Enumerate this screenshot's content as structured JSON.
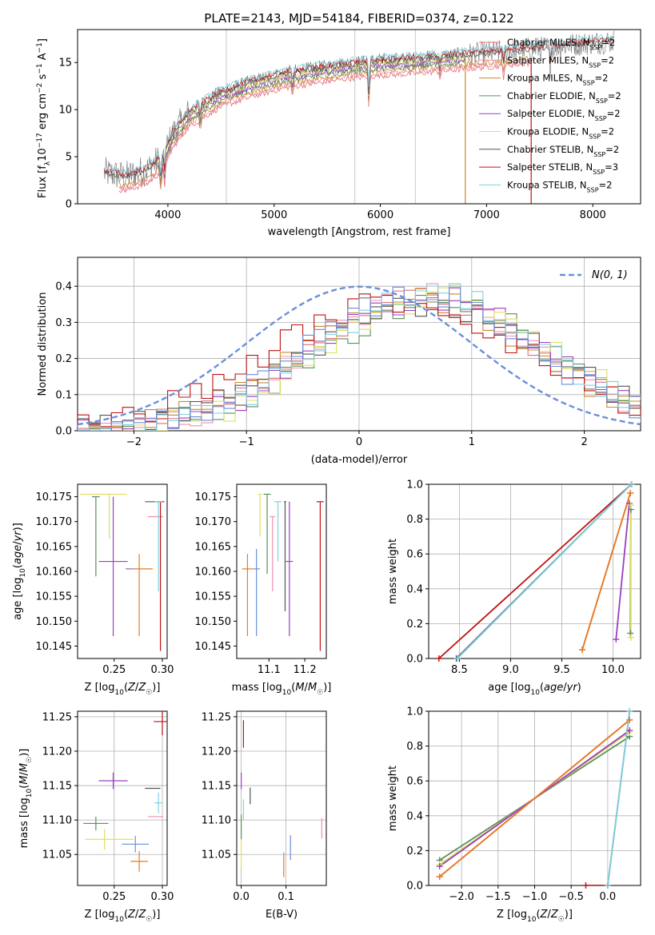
{
  "title": "PLATE=2143, MJD=54184, FIBERID=0374, z=0.122",
  "colors": {
    "chabrier_miles": "#e07070",
    "salpeter_miles": "#f090b0",
    "kroupa_miles": "#c88a2c",
    "chabrier_elodie": "#5a8f5a",
    "salpeter_elodie": "#9b3fc0",
    "kroupa_elodie": "#dde05a",
    "chabrier_stelib": "#555555",
    "salpeter_stelib": "#c01010",
    "kroupa_stelib": "#80d0e0",
    "data": "#808080",
    "normal": "#6a8fd8",
    "blue": "#6a8fd8",
    "orange": "#e87a20"
  },
  "chart_data": [
    {
      "id": "spectrum",
      "type": "line",
      "title": "PLATE=2143, MJD=54184, FIBERID=0374, z=0.122",
      "xlabel": "wavelength [Angstrom, rest frame]",
      "ylabel": "Flux [f_λ 10^-17 erg cm^-2 s^-1 A^-1]",
      "xlim": [
        3150,
        8450
      ],
      "ylim": [
        0,
        18.5
      ],
      "xticks": [
        4000,
        5000,
        6000,
        7000,
        8000
      ],
      "yticks": [
        0,
        5,
        10,
        15
      ],
      "vlines": [
        4550,
        5760,
        6330
      ],
      "drop_lines": [
        {
          "x": 6800,
          "color_key": "kroupa_miles"
        },
        {
          "x": 7420,
          "color_key": "salpeter_stelib"
        }
      ],
      "legend_location": "upper right",
      "legend": [
        {
          "label": "Chabrier MILES, N",
          "sub": "SSP",
          "suffix": "=2",
          "color_key": "chabrier_miles"
        },
        {
          "label": "Salpeter MILES, N",
          "sub": "SSP",
          "suffix": "=2",
          "color_key": "salpeter_miles"
        },
        {
          "label": "Kroupa MILES, N",
          "sub": "SSP",
          "suffix": "=2",
          "color_key": "kroupa_miles"
        },
        {
          "label": "Chabrier ELODIE, N",
          "sub": "SSP",
          "suffix": "=2",
          "color_key": "chabrier_elodie"
        },
        {
          "label": "Salpeter ELODIE, N",
          "sub": "SSP",
          "suffix": "=2",
          "color_key": "salpeter_elodie"
        },
        {
          "label": "Kroupa ELODIE, N",
          "sub": "SSP",
          "suffix": "=2",
          "color_key": "kroupa_elodie"
        },
        {
          "label": "Chabrier STELIB, N",
          "sub": "SSP",
          "suffix": "=2",
          "color_key": "chabrier_stelib"
        },
        {
          "label": "Salpeter STELIB, N",
          "sub": "SSP",
          "suffix": "=3",
          "color_key": "salpeter_stelib"
        },
        {
          "label": "Kroupa STELIB, N",
          "sub": "SSP",
          "suffix": "=2",
          "color_key": "kroupa_stelib"
        }
      ],
      "continuum": {
        "x": [
          3400,
          3600,
          3800,
          3950,
          4050,
          4200,
          4500,
          4800,
          5100,
          5400,
          5700,
          6000,
          6300,
          6600,
          6900,
          7200,
          7500,
          7800,
          8200
        ],
        "y": [
          3.3,
          2.9,
          3.6,
          5.0,
          7.5,
          9.7,
          11.8,
          12.9,
          13.8,
          14.3,
          14.8,
          15.1,
          15.3,
          15.6,
          15.9,
          16.2,
          16.5,
          16.9,
          17.3
        ]
      },
      "absorption": [
        {
          "x": 3934,
          "depth": 3.0
        },
        {
          "x": 3969,
          "depth": 2.6
        },
        {
          "x": 4305,
          "depth": 1.6
        },
        {
          "x": 5175,
          "depth": 1.4
        },
        {
          "x": 5892,
          "depth": 4.2
        },
        {
          "x": 6563,
          "depth": 1.0
        },
        {
          "x": 7160,
          "depth": 1.5
        },
        {
          "x": 7600,
          "depth": 2.0
        }
      ]
    },
    {
      "id": "residuals",
      "type": "step",
      "xlabel": "(data-model)/error",
      "ylabel": "Normed distribution",
      "xlim": [
        -2.5,
        2.5
      ],
      "ylim": [
        0,
        0.48
      ],
      "xticks": [
        -2,
        -1,
        0,
        1,
        2
      ],
      "yticks": [
        0.0,
        0.1,
        0.2,
        0.3,
        0.4
      ],
      "grid": true,
      "legend": [
        {
          "label": "N(0,1)",
          "color_key": "normal"
        }
      ],
      "legend_location": "upper right",
      "normal": {
        "mu": 0,
        "sigma": 1
      },
      "bin_width": 0.1,
      "series": [
        {
          "color_key": "chabrier_miles",
          "mu": 0.55,
          "sigma": 1.05,
          "amp": 0.37
        },
        {
          "color_key": "salpeter_miles",
          "mu": 0.6,
          "sigma": 1.0,
          "amp": 0.38
        },
        {
          "color_key": "kroupa_miles",
          "mu": 0.5,
          "sigma": 1.05,
          "amp": 0.37
        },
        {
          "color_key": "chabrier_elodie",
          "mu": 0.7,
          "sigma": 1.0,
          "amp": 0.36
        },
        {
          "color_key": "salpeter_elodie",
          "mu": 0.65,
          "sigma": 1.0,
          "amp": 0.37
        },
        {
          "color_key": "kroupa_elodie",
          "mu": 0.75,
          "sigma": 1.0,
          "amp": 0.37
        },
        {
          "color_key": "chabrier_stelib",
          "mu": 0.6,
          "sigma": 1.1,
          "amp": 0.35
        },
        {
          "color_key": "salpeter_stelib",
          "mu": 0.35,
          "sigma": 1.15,
          "amp": 0.36
        },
        {
          "color_key": "kroupa_stelib",
          "mu": 0.65,
          "sigma": 1.0,
          "amp": 0.38
        },
        {
          "color_key": "blue",
          "mu": 0.55,
          "sigma": 1.0,
          "amp": 0.38
        }
      ]
    },
    {
      "id": "age_vs_z",
      "type": "errorbar",
      "xlabel": "Z [log10(Z/Z☉)]",
      "ylabel": "age  [log10(age/yr)]",
      "xlim": [
        0.212,
        0.305
      ],
      "ylim": [
        10.1425,
        10.1775
      ],
      "xticks": [
        0.25,
        0.3
      ],
      "yticks": [
        10.145,
        10.15,
        10.155,
        10.16,
        10.165,
        10.17,
        10.175
      ],
      "points": [
        {
          "x": 0.232,
          "y": 10.1755,
          "xerr": 0.018,
          "yerr_up": 0,
          "yerr_dn": 0,
          "color_key": "kroupa_elodie"
        },
        {
          "x": 0.245,
          "y": 10.1755,
          "xerr": 0.018,
          "yerr_up": 0,
          "yerr_dn": 0.009,
          "color_key": "kroupa_elodie"
        },
        {
          "x": 0.231,
          "y": 10.175,
          "xerr": 0.004,
          "yerr_up": 0,
          "yerr_dn": 0.016,
          "color_key": "chabrier_elodie"
        },
        {
          "x": 0.249,
          "y": 10.162,
          "xerr": 0.015,
          "yerr_up": 0.013,
          "yerr_dn": 0.015,
          "color_key": "salpeter_elodie"
        },
        {
          "x": 0.276,
          "y": 10.1605,
          "xerr": 0.014,
          "yerr_up": 0.003,
          "yerr_dn": 0.0135,
          "color_key": "orange"
        },
        {
          "x": 0.266,
          "y": 10.1605,
          "xerr": 0.004,
          "yerr_up": 0,
          "yerr_dn": 0,
          "color_key": "blue"
        },
        {
          "x": 0.29,
          "y": 10.174,
          "xerr": 0.008,
          "yerr_up": 0,
          "yerr_dn": 0,
          "color_key": "chabrier_stelib"
        },
        {
          "x": 0.293,
          "y": 10.171,
          "xerr": 0.008,
          "yerr_up": 0,
          "yerr_dn": 0,
          "color_key": "salpeter_miles"
        },
        {
          "x": 0.298,
          "y": 10.174,
          "xerr": 0.004,
          "yerr_up": 0,
          "yerr_dn": 0.03,
          "color_key": "salpeter_stelib"
        },
        {
          "x": 0.296,
          "y": 10.174,
          "xerr": 0.004,
          "yerr_up": 0,
          "yerr_dn": 0.018,
          "color_key": "kroupa_stelib"
        }
      ]
    },
    {
      "id": "age_vs_mass",
      "type": "errorbar",
      "xlabel": "mass [log10(M/M☉)]",
      "ylabel": "",
      "xlim": [
        11.01,
        11.26
      ],
      "ylim": [
        10.1425,
        10.1775
      ],
      "xticks": [
        11.1,
        11.2
      ],
      "yticks": [
        10.145,
        10.15,
        10.155,
        10.16,
        10.165,
        10.17,
        10.175
      ],
      "points": [
        {
          "x": 11.04,
          "y": 10.1605,
          "xerr": 0.015,
          "yerr_up": 0.003,
          "yerr_dn": 0.0135,
          "color_key": "orange"
        },
        {
          "x": 11.065,
          "y": 10.1605,
          "xerr": 0.01,
          "yerr_up": 0.004,
          "yerr_dn": 0.0135,
          "color_key": "blue"
        },
        {
          "x": 11.075,
          "y": 10.1755,
          "xerr": 0.005,
          "yerr_up": 0,
          "yerr_dn": 0.0085,
          "color_key": "kroupa_elodie"
        },
        {
          "x": 11.095,
          "y": 10.1755,
          "xerr": 0.01,
          "yerr_up": 0,
          "yerr_dn": 0.016,
          "color_key": "chabrier_elodie"
        },
        {
          "x": 11.11,
          "y": 10.171,
          "xerr": 0.008,
          "yerr_up": 0,
          "yerr_dn": 0.015,
          "color_key": "salpeter_miles"
        },
        {
          "x": 11.125,
          "y": 10.174,
          "xerr": 0.01,
          "yerr_up": 0,
          "yerr_dn": 0.012,
          "color_key": "kroupa_stelib"
        },
        {
          "x": 11.145,
          "y": 10.174,
          "xerr": 0.003,
          "yerr_up": 0,
          "yerr_dn": 0.022,
          "color_key": "chabrier_stelib"
        },
        {
          "x": 11.157,
          "y": 10.162,
          "xerr": 0.01,
          "yerr_up": 0.012,
          "yerr_dn": 0.015,
          "color_key": "salpeter_elodie"
        },
        {
          "x": 11.243,
          "y": 10.174,
          "xerr": 0.01,
          "yerr_up": 0,
          "yerr_dn": 0.03,
          "color_key": "salpeter_stelib"
        }
      ]
    },
    {
      "id": "weight_vs_age",
      "type": "line",
      "xlabel": "age  [log10(age/yr)]",
      "ylabel": "mass weight",
      "xlim": [
        8.2,
        10.27
      ],
      "ylim": [
        0,
        1
      ],
      "xticks": [
        8.5,
        9.0,
        9.5,
        10.0
      ],
      "yticks": [
        0.0,
        0.2,
        0.4,
        0.6,
        0.8,
        1.0
      ],
      "grid": true,
      "series": [
        {
          "color_key": "salpeter_stelib",
          "x": [
            8.3,
            10.18
          ],
          "y": [
            0.0,
            1.0
          ]
        },
        {
          "color_key": "chabrier_stelib",
          "x": [
            8.47,
            10.18
          ],
          "y": [
            0.0,
            1.0
          ]
        },
        {
          "color_key": "kroupa_stelib",
          "x": [
            8.48,
            10.18
          ],
          "y": [
            0.0,
            1.0
          ]
        },
        {
          "color_key": "chabrier_miles",
          "x": [
            9.7,
            10.17
          ],
          "y": [
            0.05,
            0.95
          ]
        },
        {
          "color_key": "orange",
          "x": [
            9.7,
            10.17
          ],
          "y": [
            0.05,
            0.95
          ]
        },
        {
          "color_key": "salpeter_elodie",
          "x": [
            10.03,
            10.16
          ],
          "y": [
            0.11,
            0.89
          ]
        },
        {
          "color_key": "chabrier_elodie",
          "x": [
            10.17,
            10.175
          ],
          "y": [
            0.145,
            0.855
          ]
        },
        {
          "color_key": "kroupa_elodie",
          "x": [
            10.175,
            10.175
          ],
          "y": [
            0.12,
            0.88
          ]
        }
      ]
    },
    {
      "id": "mass_vs_z",
      "type": "errorbar",
      "xlabel": "Z [log10(Z/Z☉)]",
      "ylabel": "mass [log10(M/M☉)]",
      "xlim": [
        0.212,
        0.305
      ],
      "ylim": [
        11.005,
        11.258
      ],
      "xticks": [
        0.25,
        0.3
      ],
      "yticks": [
        11.05,
        11.1,
        11.15,
        11.2,
        11.25
      ],
      "grid": true,
      "points": [
        {
          "x": 0.249,
          "y": 11.157,
          "xerr": 0.015,
          "yerr": 0.012,
          "color_key": "salpeter_elodie"
        },
        {
          "x": 0.231,
          "y": 11.095,
          "xerr": 0.013,
          "yerr": 0.01,
          "color_key": "chabrier_elodie"
        },
        {
          "x": 0.245,
          "y": 11.072,
          "xerr": 0.025,
          "yerr": 0.0,
          "color_key": "kroupa_elodie"
        },
        {
          "x": 0.24,
          "y": 11.072,
          "xerr": 0.0,
          "yerr": 0.015,
          "color_key": "kroupa_elodie"
        },
        {
          "x": 0.272,
          "y": 11.065,
          "xerr": 0.014,
          "yerr": 0.012,
          "color_key": "blue"
        },
        {
          "x": 0.276,
          "y": 11.04,
          "xerr": 0.009,
          "yerr": 0.015,
          "color_key": "orange"
        },
        {
          "x": 0.29,
          "y": 11.146,
          "xerr": 0.008,
          "yerr": 0.0,
          "color_key": "chabrier_stelib"
        },
        {
          "x": 0.293,
          "y": 11.105,
          "xerr": 0.008,
          "yerr": 0.0,
          "color_key": "salpeter_miles"
        },
        {
          "x": 0.298,
          "y": 11.243,
          "xerr": 0.007,
          "yerr": 0.0,
          "color_key": "salpeter_stelib"
        },
        {
          "x": 0.3,
          "y": 11.243,
          "xerr": 0.0,
          "yerr": 0.02,
          "color_key": "salpeter_stelib"
        },
        {
          "x": 0.296,
          "y": 11.125,
          "xerr": 0.004,
          "yerr": 0.015,
          "color_key": "kroupa_stelib"
        }
      ]
    },
    {
      "id": "mass_vs_ebv",
      "type": "errorbar",
      "xlabel": "E(B-V)",
      "ylabel": "",
      "xlim": [
        -0.01,
        0.19
      ],
      "ylim": [
        11.005,
        11.258
      ],
      "xticks": [
        0.0,
        0.1
      ],
      "yticks": [
        11.05,
        11.1,
        11.15,
        11.2,
        11.25
      ],
      "grid": true,
      "points": [
        {
          "x": 0.005,
          "y": 11.225,
          "yerr": 0.02,
          "color_key": "salpeter_stelib"
        },
        {
          "x": 0.0,
          "y": 11.157,
          "yerr": 0.012,
          "color_key": "salpeter_elodie"
        },
        {
          "x": 0.02,
          "y": 11.135,
          "yerr": 0.012,
          "color_key": "chabrier_stelib"
        },
        {
          "x": 0.005,
          "y": 11.115,
          "yerr": 0.015,
          "color_key": "kroupa_stelib"
        },
        {
          "x": 0.0,
          "y": 11.09,
          "yerr": 0.018,
          "color_key": "chabrier_elodie"
        },
        {
          "x": 0.0,
          "y": 11.052,
          "yerr": 0.02,
          "color_key": "kroupa_elodie"
        },
        {
          "x": 0.11,
          "y": 11.06,
          "yerr": 0.018,
          "color_key": "blue"
        },
        {
          "x": 0.095,
          "y": 11.035,
          "yerr": 0.018,
          "color_key": "orange"
        },
        {
          "x": 0.18,
          "y": 11.088,
          "yerr": 0.015,
          "color_key": "salpeter_miles"
        }
      ]
    },
    {
      "id": "weight_vs_z",
      "type": "line",
      "xlabel": "Z [log10(Z/Z☉)]",
      "ylabel": "mass weight",
      "xlim": [
        -2.45,
        0.45
      ],
      "ylim": [
        0,
        1
      ],
      "xticks": [
        -2.0,
        -1.5,
        -1.0,
        -0.5,
        0.0
      ],
      "yticks": [
        0.0,
        0.2,
        0.4,
        0.6,
        0.8,
        1.0
      ],
      "grid": true,
      "series": [
        {
          "color_key": "chabrier_elodie",
          "x": [
            -2.3,
            0.3
          ],
          "y": [
            0.145,
            0.855
          ]
        },
        {
          "color_key": "kroupa_elodie",
          "x": [
            -2.3,
            0.3
          ],
          "y": [
            0.12,
            0.88
          ]
        },
        {
          "color_key": "salpeter_elodie",
          "x": [
            -2.3,
            0.3
          ],
          "y": [
            0.11,
            0.89
          ]
        },
        {
          "color_key": "chabrier_miles",
          "x": [
            -2.3,
            0.3
          ],
          "y": [
            0.05,
            0.95
          ]
        },
        {
          "color_key": "orange",
          "x": [
            -2.3,
            0.3
          ],
          "y": [
            0.05,
            0.95
          ]
        },
        {
          "color_key": "salpeter_stelib",
          "x": [
            -0.3,
            0.0
          ],
          "y": [
            0.0,
            0.0
          ]
        },
        {
          "color_key": "chabrier_stelib",
          "x": [
            0.0,
            0.3
          ],
          "y": [
            0.0,
            1.0
          ]
        },
        {
          "color_key": "kroupa_stelib",
          "x": [
            0.0,
            0.3
          ],
          "y": [
            0.0,
            1.0
          ]
        }
      ]
    }
  ],
  "axis_text": {
    "spectrum_x": "wavelength [Angstrom, rest frame]",
    "spectrum_y": "Flux [f",
    "resid_x": "(data-model)/error",
    "resid_y": "Normed distribution",
    "normal_label": "N(0, 1)",
    "agez_x": "Z [log",
    "agez_y": "age  [log",
    "agem_x": "mass [log",
    "wa_x": "age  [log",
    "wa_y": "mass weight",
    "mz_x": "Z [log",
    "mz_y": "mass [log",
    "me_x": "E(B-V)",
    "wz_x": "Z [log",
    "wz_y": "mass weight"
  }
}
